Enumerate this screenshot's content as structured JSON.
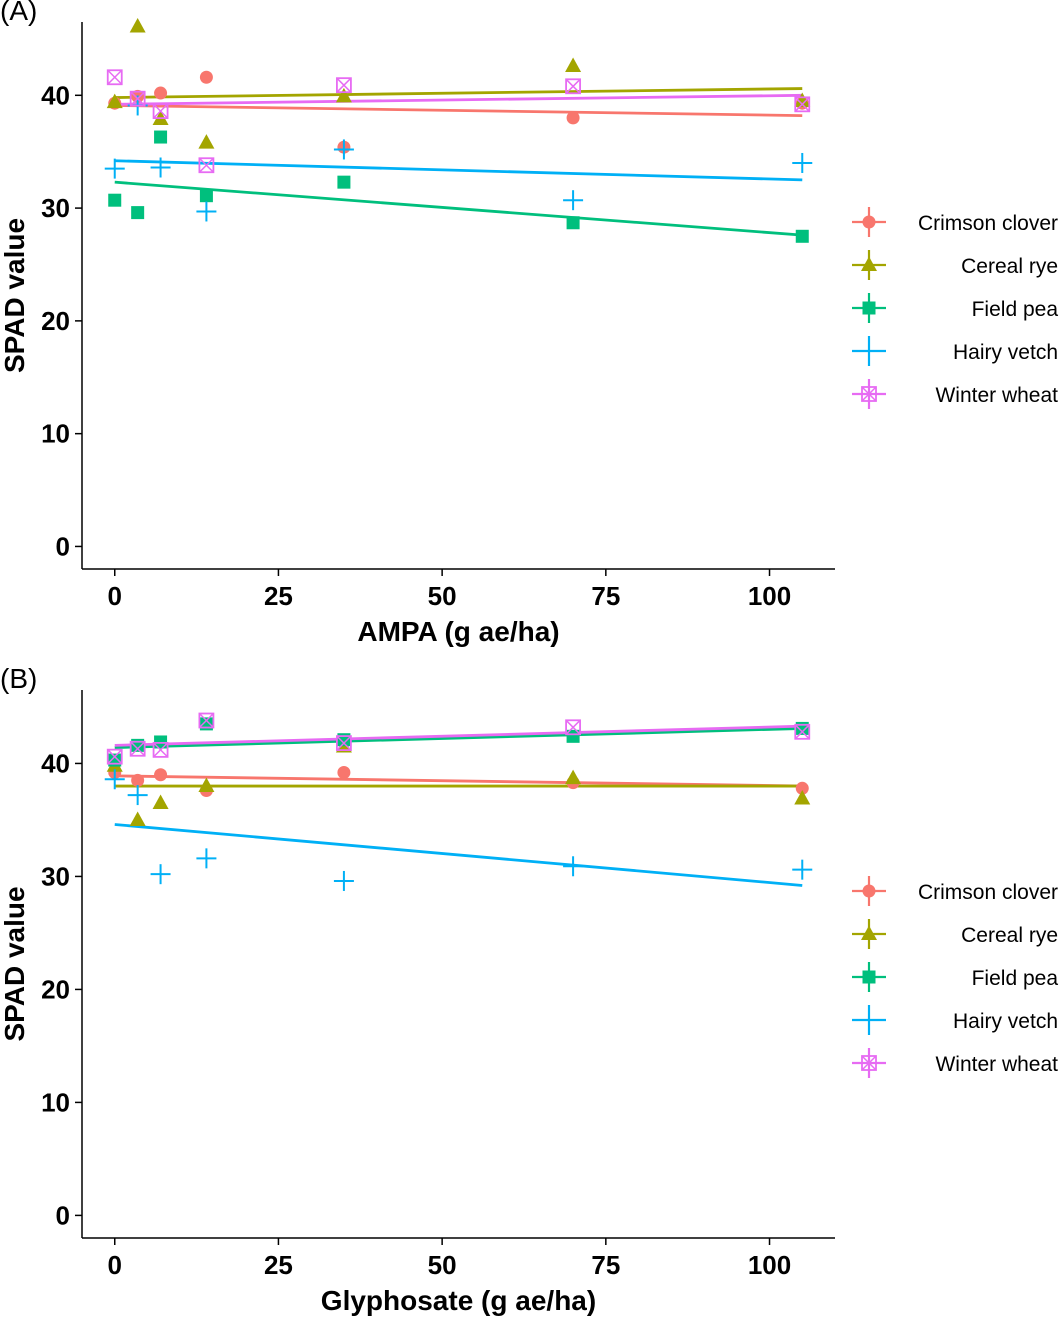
{
  "chart_data": [
    {
      "type": "scatter",
      "panel_label": "(A)",
      "xlabel": "AMPA (g ae/ha)",
      "ylabel": "SPAD value",
      "xlim": [
        -5,
        110
      ],
      "ylim": [
        -2,
        46.5
      ],
      "xticks": [
        0,
        25,
        50,
        75,
        100
      ],
      "xtick_labels": [
        "0",
        "25",
        "50",
        "75",
        "100"
      ],
      "yticks": [
        0,
        10,
        20,
        30,
        40
      ],
      "ytick_labels": [
        "0",
        "10",
        "20",
        "30",
        "40"
      ],
      "grid": false,
      "legend_position": "right",
      "series": [
        {
          "name": "Crimson clover",
          "color": "#F8766D",
          "marker": "circle",
          "points": [
            [
              0,
              39.3
            ],
            [
              3.5,
              39.9
            ],
            [
              7,
              40.2
            ],
            [
              14,
              41.6
            ],
            [
              35,
              35.4
            ],
            [
              70,
              38.0
            ],
            [
              105,
              39.3
            ]
          ],
          "fit": [
            [
              0,
              39.1
            ],
            [
              105,
              38.2
            ]
          ]
        },
        {
          "name": "Cereal rye",
          "color": "#A3A500",
          "marker": "triangle",
          "points": [
            [
              0,
              39.4
            ],
            [
              3.5,
              46.1
            ],
            [
              7,
              37.9
            ],
            [
              14,
              35.8
            ],
            [
              35,
              39.9
            ],
            [
              70,
              42.6
            ],
            [
              105,
              39.5
            ]
          ],
          "fit": [
            [
              0,
              39.8
            ],
            [
              105,
              40.6
            ]
          ]
        },
        {
          "name": "Field pea",
          "color": "#00BF7D",
          "marker": "square",
          "points": [
            [
              0,
              30.7
            ],
            [
              3.5,
              29.6
            ],
            [
              7,
              36.3
            ],
            [
              14,
              31.1
            ],
            [
              35,
              32.3
            ],
            [
              70,
              28.7
            ],
            [
              105,
              27.5
            ]
          ],
          "fit": [
            [
              0,
              32.3
            ],
            [
              105,
              27.6
            ]
          ]
        },
        {
          "name": "Hairy vetch",
          "color": "#00B0F6",
          "marker": "plus",
          "points": [
            [
              0,
              33.5
            ],
            [
              3.5,
              39.1
            ],
            [
              7,
              33.6
            ],
            [
              14,
              29.7
            ],
            [
              35,
              35.2
            ],
            [
              70,
              30.7
            ],
            [
              105,
              34.0
            ]
          ],
          "fit": [
            [
              0,
              34.2
            ],
            [
              105,
              32.5
            ]
          ]
        },
        {
          "name": "Winter wheat",
          "color": "#E76BF3",
          "marker": "boxcross",
          "points": [
            [
              0,
              41.6
            ],
            [
              3.5,
              39.7
            ],
            [
              7,
              38.6
            ],
            [
              14,
              33.8
            ],
            [
              35,
              40.9
            ],
            [
              70,
              40.8
            ],
            [
              105,
              39.2
            ]
          ],
          "fit": [
            [
              0,
              39.2
            ],
            [
              105,
              40.0
            ]
          ]
        }
      ]
    },
    {
      "type": "scatter",
      "panel_label": "(B)",
      "xlabel": "Glyphosate (g ae/ha)",
      "ylabel": "SPAD value",
      "xlim": [
        -5,
        110
      ],
      "ylim": [
        -2,
        46.5
      ],
      "xticks": [
        0,
        25,
        50,
        75,
        100
      ],
      "xtick_labels": [
        "0",
        "25",
        "50",
        "75",
        "100"
      ],
      "yticks": [
        0,
        10,
        20,
        30,
        40
      ],
      "ytick_labels": [
        "0",
        "10",
        "20",
        "30",
        "40"
      ],
      "grid": false,
      "legend_position": "right",
      "series": [
        {
          "name": "Crimson clover",
          "color": "#F8766D",
          "marker": "circle",
          "points": [
            [
              0,
              39.2
            ],
            [
              3.5,
              38.5
            ],
            [
              7,
              39.0
            ],
            [
              14,
              37.6
            ],
            [
              35,
              39.2
            ],
            [
              70,
              38.3
            ],
            [
              105,
              37.8
            ]
          ],
          "fit": [
            [
              0,
              38.9
            ],
            [
              105,
              38.0
            ]
          ]
        },
        {
          "name": "Cereal rye",
          "color": "#A3A500",
          "marker": "triangle",
          "points": [
            [
              0,
              39.8
            ],
            [
              3.5,
              35.0
            ],
            [
              7,
              36.5
            ],
            [
              14,
              38.0
            ],
            [
              35,
              41.5
            ],
            [
              70,
              38.7
            ],
            [
              105,
              36.9
            ]
          ],
          "fit": [
            [
              0,
              38.0
            ],
            [
              105,
              38.0
            ]
          ]
        },
        {
          "name": "Field pea",
          "color": "#00BF7D",
          "marker": "square",
          "points": [
            [
              0,
              40.3
            ],
            [
              3.5,
              41.6
            ],
            [
              7,
              41.9
            ],
            [
              14,
              43.5
            ],
            [
              35,
              42.1
            ],
            [
              70,
              42.4
            ],
            [
              105,
              43.1
            ]
          ],
          "fit": [
            [
              0,
              41.4
            ],
            [
              105,
              43.1
            ]
          ]
        },
        {
          "name": "Hairy vetch",
          "color": "#00B0F6",
          "marker": "plus",
          "points": [
            [
              0,
              38.6
            ],
            [
              3.5,
              37.2
            ],
            [
              7,
              30.2
            ],
            [
              14,
              31.6
            ],
            [
              35,
              29.6
            ],
            [
              70,
              30.9
            ],
            [
              105,
              30.6
            ]
          ],
          "fit": [
            [
              0,
              34.6
            ],
            [
              105,
              29.2
            ]
          ]
        },
        {
          "name": "Winter wheat",
          "color": "#E76BF3",
          "marker": "boxcross",
          "points": [
            [
              0,
              40.6
            ],
            [
              3.5,
              41.3
            ],
            [
              7,
              41.2
            ],
            [
              14,
              43.8
            ],
            [
              35,
              41.8
            ],
            [
              70,
              43.2
            ],
            [
              105,
              42.8
            ]
          ],
          "fit": [
            [
              0,
              41.6
            ],
            [
              105,
              43.3
            ]
          ]
        }
      ]
    }
  ]
}
